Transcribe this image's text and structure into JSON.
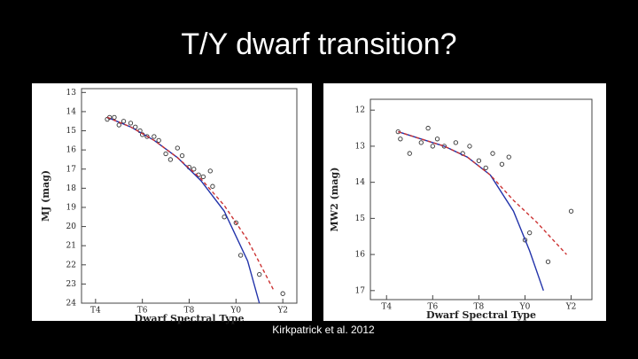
{
  "title": "T/Y dwarf transition?",
  "caption": "Kirkpatrick et al. 2012",
  "chart_data": [
    {
      "type": "scatter",
      "xlabel": "Dwarf Spectral Type",
      "ylabel": "MJ (mag)",
      "xlim": [
        3.4,
        12.6
      ],
      "ylim": [
        24,
        12.8
      ],
      "xticks": [
        {
          "value": 4,
          "label": "T4"
        },
        {
          "value": 6,
          "label": "T6"
        },
        {
          "value": 8,
          "label": "T8"
        },
        {
          "value": 10,
          "label": "Y0"
        },
        {
          "value": 12,
          "label": "Y2"
        }
      ],
      "yticks": [
        13,
        14,
        15,
        16,
        17,
        18,
        19,
        20,
        21,
        22,
        23,
        24
      ],
      "series": [
        {
          "color": "#333333",
          "x": [
            4.5,
            4.6,
            4.8,
            5.0,
            5.2,
            5.5,
            5.7,
            5.9,
            6.0,
            6.2,
            6.5,
            6.7,
            7.0,
            7.2,
            7.5,
            7.7,
            8.0,
            8.2,
            8.4,
            8.6,
            8.9,
            9.0,
            9.5,
            10.0,
            10.2,
            11.0,
            12.0
          ],
          "values": [
            14.4,
            14.3,
            14.3,
            14.7,
            14.5,
            14.6,
            14.8,
            15.0,
            15.2,
            15.3,
            15.3,
            15.5,
            16.2,
            16.5,
            15.9,
            16.3,
            16.9,
            17.0,
            17.3,
            17.4,
            17.1,
            17.9,
            19.5,
            19.8,
            21.5,
            22.5,
            23.5
          ]
        },
        {
          "color": "#2233aa",
          "line": "solid",
          "x": [
            4.5,
            5.5,
            6.5,
            7.5,
            8.5,
            9.5,
            10.5,
            11.0
          ],
          "values": [
            14.3,
            14.8,
            15.5,
            16.4,
            17.6,
            19.2,
            21.8,
            24.0
          ]
        },
        {
          "color": "#cc3333",
          "line": "dashed",
          "x": [
            4.5,
            5.5,
            6.5,
            7.5,
            8.5,
            9.5,
            10.5,
            11.6
          ],
          "values": [
            14.3,
            14.8,
            15.5,
            16.4,
            17.5,
            18.9,
            20.7,
            23.3
          ]
        }
      ]
    },
    {
      "type": "scatter",
      "xlabel": "Dwarf Spectral Type",
      "ylabel": "MW2 (mag)",
      "xlim": [
        3.3,
        12.9
      ],
      "ylim": [
        17.25,
        11.7
      ],
      "xticks": [
        {
          "value": 4,
          "label": "T4"
        },
        {
          "value": 6,
          "label": "T6"
        },
        {
          "value": 8,
          "label": "T8"
        },
        {
          "value": 10,
          "label": "Y0"
        },
        {
          "value": 12,
          "label": "Y2"
        }
      ],
      "yticks": [
        12,
        13,
        14,
        15,
        16,
        17
      ],
      "series": [
        {
          "color": "#333333",
          "x": [
            4.5,
            4.6,
            5.0,
            5.5,
            5.8,
            6.0,
            6.2,
            6.5,
            7.0,
            7.3,
            7.6,
            8.0,
            8.3,
            8.6,
            9.0,
            9.3,
            10.0,
            10.2,
            11.0,
            12.0
          ],
          "values": [
            12.6,
            12.8,
            13.2,
            12.9,
            12.5,
            13.0,
            12.8,
            13.0,
            12.9,
            13.2,
            13.0,
            13.4,
            13.6,
            13.2,
            13.5,
            13.3,
            15.6,
            15.4,
            16.2,
            14.8
          ]
        },
        {
          "color": "#2233aa",
          "line": "solid",
          "x": [
            4.5,
            5.5,
            6.5,
            7.5,
            8.5,
            9.5,
            10.2,
            10.8
          ],
          "values": [
            12.6,
            12.8,
            13.0,
            13.3,
            13.8,
            14.8,
            15.9,
            17.0
          ]
        },
        {
          "color": "#cc3333",
          "line": "dashed",
          "x": [
            4.5,
            5.5,
            6.5,
            7.5,
            8.5,
            9.5,
            10.5,
            11.8
          ],
          "values": [
            12.6,
            12.8,
            13.0,
            13.3,
            13.8,
            14.5,
            15.1,
            16.0
          ]
        }
      ]
    }
  ]
}
